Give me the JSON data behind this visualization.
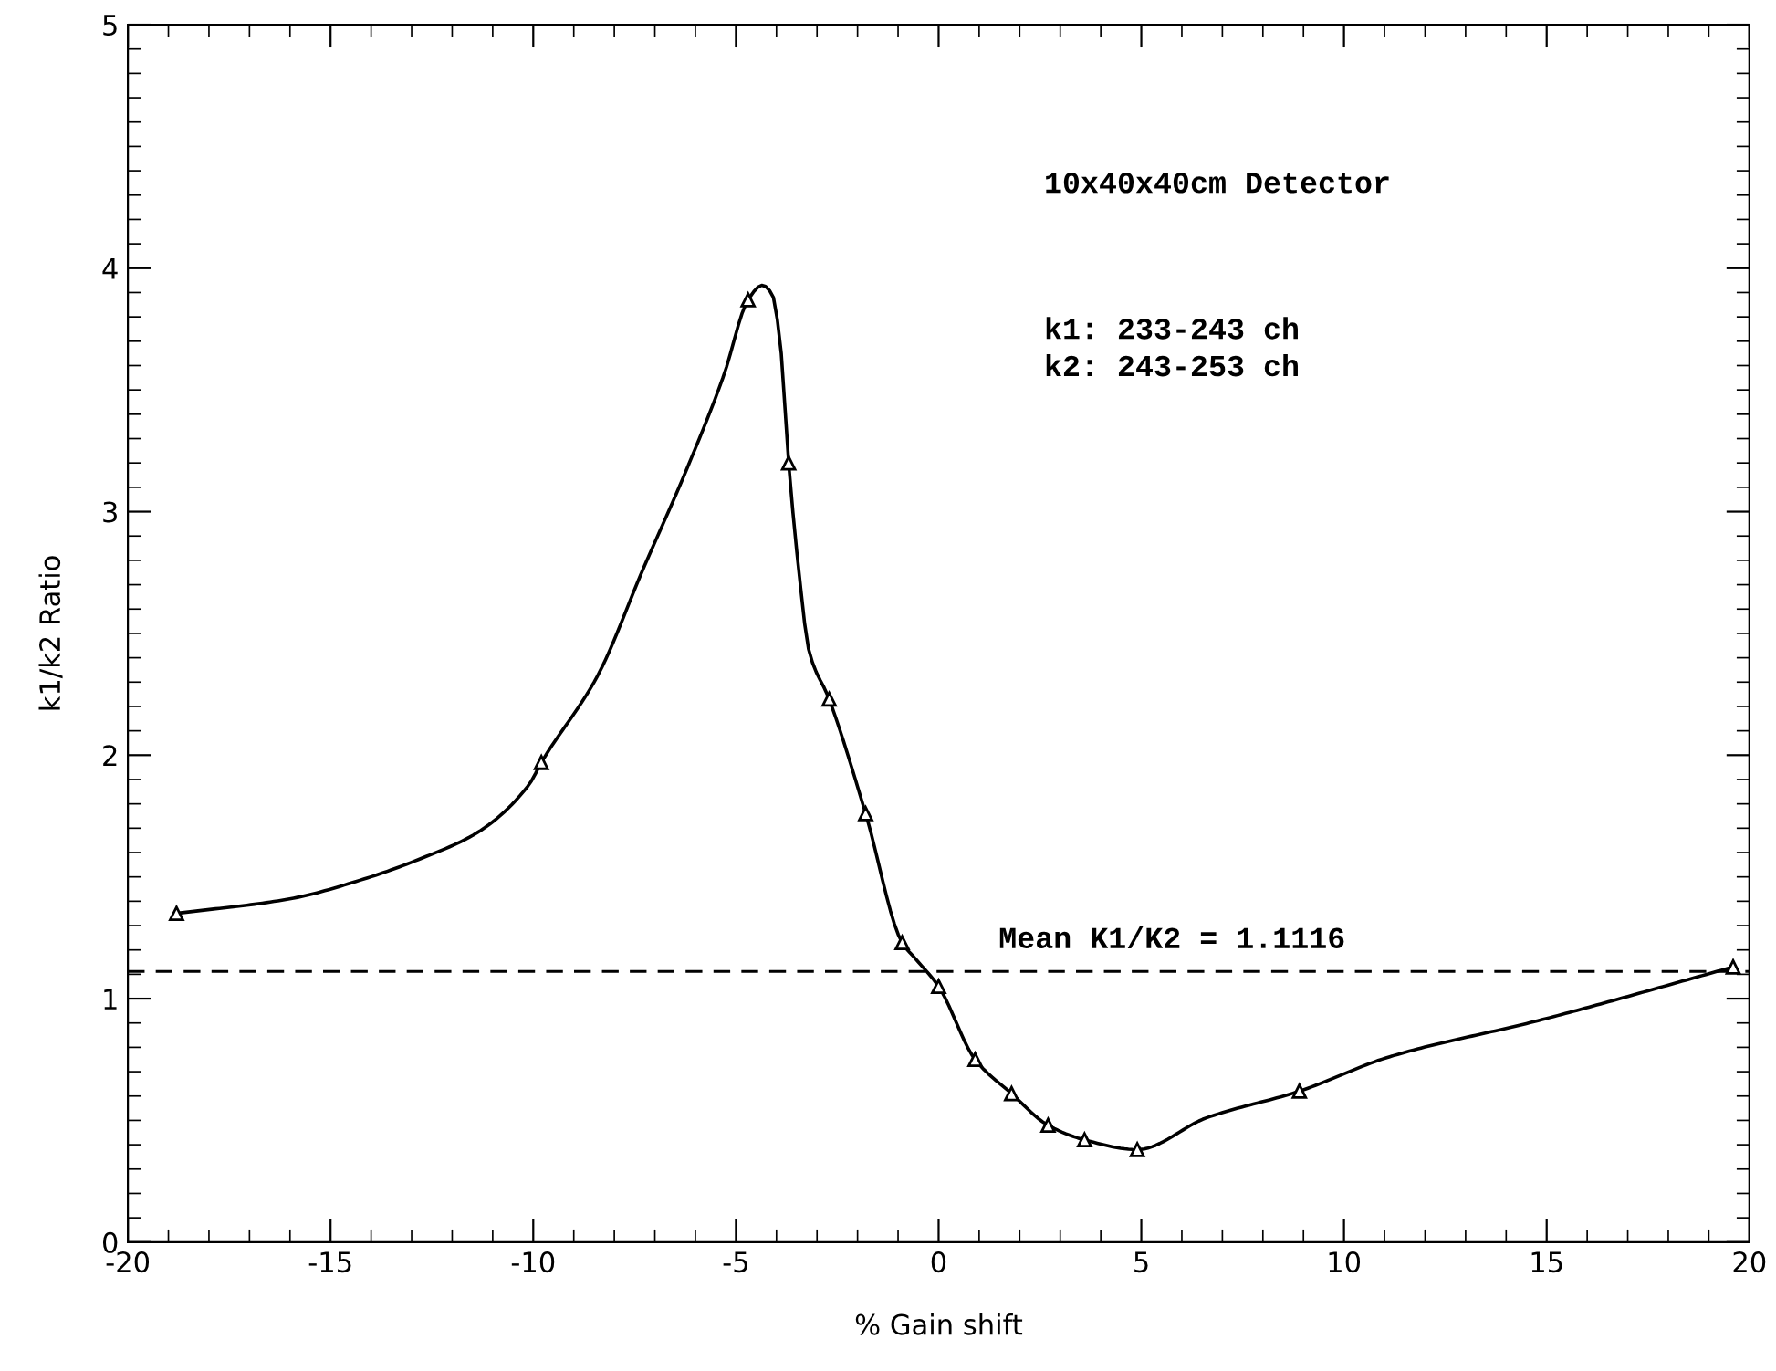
{
  "chart_data": {
    "type": "line",
    "xlabel": "% Gain shift",
    "ylabel": "k1/k2 Ratio",
    "annotations": [
      "10x40x40cm Detector",
      "k1: 233-243 ch\nk2: 243-253 ch"
    ],
    "series": [
      {
        "color": "#000000",
        "marker": "none",
        "line_style": "solid",
        "x": [
          -18.8,
          -16.0,
          -14.2,
          -12.7,
          -11.4,
          -10.1,
          -9.8,
          -8.4,
          -7.3,
          -6.2,
          -5.3,
          -4.7,
          -4.35,
          -4.1,
          -3.9,
          -3.7,
          -3.45,
          -3.2,
          -2.7,
          -1.8,
          -0.9,
          -0.55,
          0.0,
          0.9,
          1.8,
          2.7,
          3.6,
          4.9,
          6.6,
          8.9,
          11.1,
          14.8,
          19.6
        ],
        "values": [
          1.35,
          1.41,
          1.49,
          1.58,
          1.68,
          1.88,
          1.97,
          2.33,
          2.76,
          3.18,
          3.56,
          3.87,
          3.93,
          3.89,
          3.68,
          3.2,
          2.76,
          2.43,
          2.23,
          1.76,
          1.23,
          1.16,
          1.05,
          0.75,
          0.61,
          0.48,
          0.42,
          0.38,
          0.51,
          0.62,
          0.76,
          0.91,
          1.13
        ]
      },
      {
        "type": "scatter",
        "color": "#000000",
        "marker": "triangle",
        "x": [
          -18.8,
          -9.8,
          -4.7,
          -3.7,
          -2.7,
          -1.8,
          -0.9,
          0.0,
          0.9,
          1.8,
          2.7,
          3.6,
          4.9,
          8.9,
          19.6
        ],
        "values": [
          1.35,
          1.97,
          3.87,
          3.2,
          2.23,
          1.76,
          1.23,
          1.05,
          0.75,
          0.61,
          0.48,
          0.42,
          0.38,
          0.62,
          1.13
        ]
      }
    ],
    "ref_lines": [
      {
        "axis": "y",
        "value": 1.1116,
        "label": "Mean K1/K2 = 1.1116",
        "line_style": "dashed",
        "color": "#000000"
      }
    ],
    "xlim": [
      -20,
      20
    ],
    "ylim": [
      0,
      5
    ],
    "xticks": [
      -20,
      -15,
      -10,
      -5,
      0,
      5,
      10,
      15,
      20
    ],
    "yticks": [
      0,
      1,
      2,
      3,
      4,
      5
    ],
    "grid": false,
    "legend": false
  }
}
